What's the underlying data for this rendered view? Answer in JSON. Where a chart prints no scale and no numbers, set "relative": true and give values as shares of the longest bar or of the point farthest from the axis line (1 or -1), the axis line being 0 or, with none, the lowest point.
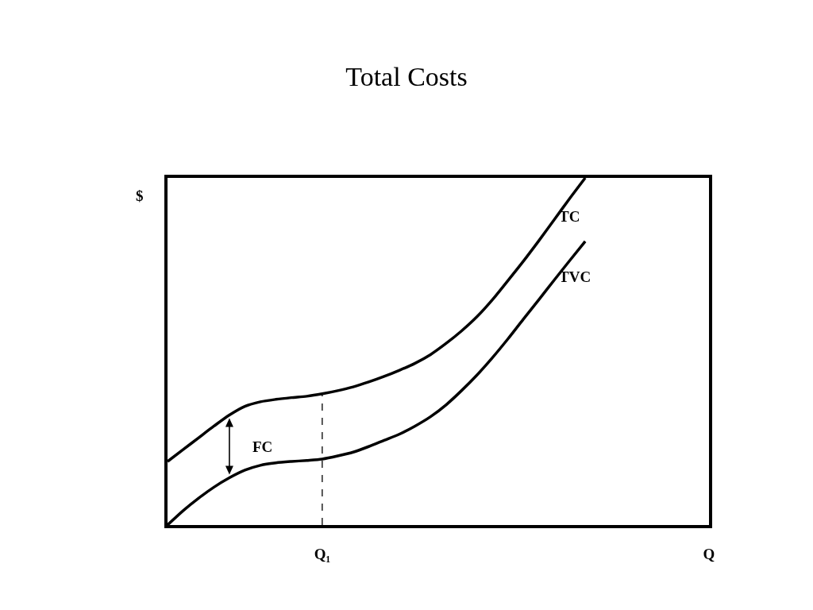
{
  "chart_data": {
    "type": "line",
    "title": "Total Costs",
    "ylabel": "$",
    "relative": true,
    "line_style": "solid",
    "categories": [
      null,
      null,
      null,
      null,
      null,
      null,
      null,
      null,
      null,
      null,
      "Q₁",
      null,
      null,
      null,
      null,
      null,
      null,
      null,
      null,
      null,
      null,
      null,
      null,
      null,
      null,
      null,
      null,
      null,
      null,
      null,
      null,
      null,
      null,
      null,
      null,
      "Q"
    ],
    "series": [
      {
        "name": "TC",
        "color": "#000000",
        "values": [
          0.183,
          0.217,
          0.251,
          0.285,
          0.317,
          0.342,
          0.355,
          0.362,
          0.367,
          0.371,
          0.378,
          0.387,
          0.398,
          0.412,
          0.428,
          0.446,
          0.466,
          0.491,
          0.523,
          0.559,
          0.6,
          0.649,
          0.704,
          0.76,
          0.819,
          0.88,
          0.941,
          1,
          null,
          null,
          null,
          null,
          null,
          null,
          null,
          null
        ]
      },
      {
        "name": "TVC",
        "color": "#000000",
        "values": [
          0,
          0.041,
          0.077,
          0.109,
          0.136,
          0.158,
          0.172,
          0.179,
          0.183,
          0.186,
          0.19,
          0.199,
          0.21,
          0.226,
          0.244,
          0.262,
          0.285,
          0.312,
          0.346,
          0.387,
          0.432,
          0.482,
          0.536,
          0.593,
          0.649,
          0.706,
          0.762,
          0.817,
          null,
          null,
          null,
          null,
          null,
          null,
          null,
          null
        ]
      },
      {
        "color": "#000000",
        "x": [
          "Q₁",
          "Q₁"
        ],
        "values": [
          0,
          0.378
        ],
        "line_style": "dashed"
      }
    ],
    "annotations": [
      "FC"
    ]
  }
}
